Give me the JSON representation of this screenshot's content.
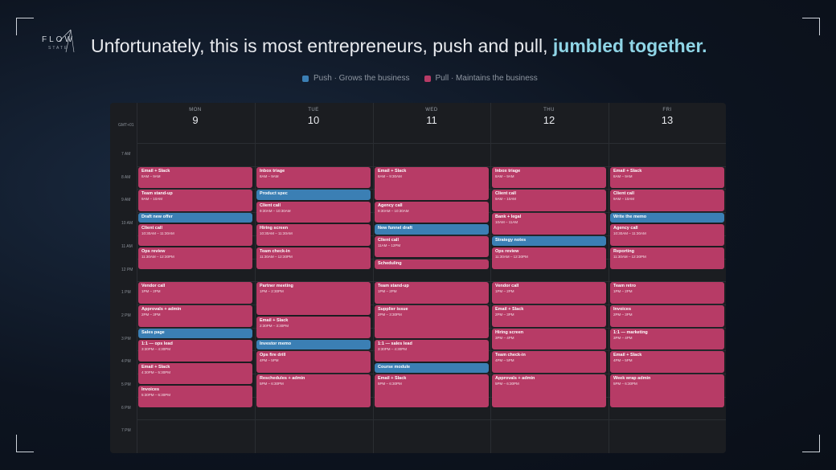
{
  "brand": {
    "name": "FLOW",
    "sub": "STATE"
  },
  "headline": {
    "main": "Unfortunately, this is most entrepreneurs, push and pull,",
    "highlight": "jumbled together."
  },
  "legend": {
    "push": {
      "label": "Push · Grows the business",
      "color": "#3b7fb4"
    },
    "pull": {
      "label": "Pull · Maintains the business",
      "color": "#b73b66"
    }
  },
  "calendar": {
    "timezone": "GMT+01",
    "hours": [
      "7 AM",
      "8 AM",
      "9 AM",
      "10 AM",
      "11 AM",
      "12 PM",
      "1 PM",
      "2 PM",
      "3 PM",
      "4 PM",
      "5 PM",
      "6 PM",
      "7 PM"
    ],
    "days": [
      {
        "name": "MON",
        "num": "9",
        "events": [
          {
            "title": "Email + Slack",
            "time": "8AM – 9AM",
            "type": "pull",
            "start": 8,
            "end": 9
          },
          {
            "title": "Team stand-up",
            "time": "9AM – 10AM",
            "type": "pull",
            "start": 9,
            "end": 10
          },
          {
            "title": "Draft new offer",
            "time": "",
            "type": "push",
            "start": 10,
            "end": 10.5
          },
          {
            "title": "Client call",
            "time": "10:30AM – 11:30AM",
            "type": "pull",
            "start": 10.5,
            "end": 11.5
          },
          {
            "title": "Ops review",
            "time": "11:30AM – 12:30PM",
            "type": "pull",
            "start": 11.5,
            "end": 12.5
          },
          {
            "title": "Vendor call",
            "time": "1PM – 2PM",
            "type": "pull",
            "start": 13,
            "end": 14
          },
          {
            "title": "Approvals + admin",
            "time": "2PM – 3PM",
            "type": "pull",
            "start": 14,
            "end": 15
          },
          {
            "title": "Sales page",
            "time": "",
            "type": "push",
            "start": 15,
            "end": 15.5
          },
          {
            "title": "1:1 — ops lead",
            "time": "3:30PM – 4:30PM",
            "type": "pull",
            "start": 15.5,
            "end": 16.5
          },
          {
            "title": "Email + Slack",
            "time": "4:30PM – 5:30PM",
            "type": "pull",
            "start": 16.5,
            "end": 17.5
          },
          {
            "title": "Invoices",
            "time": "5:30PM – 6:30PM",
            "type": "pull",
            "start": 17.5,
            "end": 18.5
          }
        ]
      },
      {
        "name": "TUE",
        "num": "10",
        "events": [
          {
            "title": "Inbox triage",
            "time": "8AM – 9AM",
            "type": "pull",
            "start": 8,
            "end": 9
          },
          {
            "title": "Product spec",
            "time": "",
            "type": "push",
            "start": 9,
            "end": 9.5
          },
          {
            "title": "Client call",
            "time": "9:30AM – 10:30AM",
            "type": "pull",
            "start": 9.5,
            "end": 10.5
          },
          {
            "title": "Hiring screen",
            "time": "10:30AM – 11:30AM",
            "type": "pull",
            "start": 10.5,
            "end": 11.5
          },
          {
            "title": "Team check-in",
            "time": "11:30AM – 12:30PM",
            "type": "pull",
            "start": 11.5,
            "end": 12.5
          },
          {
            "title": "Partner meeting",
            "time": "1PM – 2:30PM",
            "type": "pull",
            "start": 13,
            "end": 14.5
          },
          {
            "title": "Email + Slack",
            "time": "2:30PM – 3:30PM",
            "type": "pull",
            "start": 14.5,
            "end": 15.5
          },
          {
            "title": "Investor memo",
            "time": "",
            "type": "push",
            "start": 15.5,
            "end": 16
          },
          {
            "title": "Ops fire drill",
            "time": "4PM – 5PM",
            "type": "pull",
            "start": 16,
            "end": 17
          },
          {
            "title": "Reschedules + admin",
            "time": "5PM – 6:30PM",
            "type": "pull",
            "start": 17,
            "end": 18.5
          }
        ]
      },
      {
        "name": "WED",
        "num": "11",
        "events": [
          {
            "title": "Email + Slack",
            "time": "8AM – 9:30AM",
            "type": "pull",
            "start": 8,
            "end": 9.5
          },
          {
            "title": "Agency call",
            "time": "9:30AM – 10:30AM",
            "type": "pull",
            "start": 9.5,
            "end": 10.5
          },
          {
            "title": "New funnel draft",
            "time": "",
            "type": "push",
            "start": 10.5,
            "end": 11
          },
          {
            "title": "Client call",
            "time": "11AM – 12PM",
            "type": "pull",
            "start": 11,
            "end": 12
          },
          {
            "title": "Scheduling",
            "time": "",
            "type": "pull",
            "start": 12,
            "end": 12.5
          },
          {
            "title": "Team stand-up",
            "time": "1PM – 2PM",
            "type": "pull",
            "start": 13,
            "end": 14
          },
          {
            "title": "Supplier issue",
            "time": "2PM – 3:30PM",
            "type": "pull",
            "start": 14,
            "end": 15.5
          },
          {
            "title": "1:1 — sales lead",
            "time": "3:30PM – 4:30PM",
            "type": "pull",
            "start": 15.5,
            "end": 16.5
          },
          {
            "title": "Course module",
            "time": "",
            "type": "push",
            "start": 16.5,
            "end": 17
          },
          {
            "title": "Email + Slack",
            "time": "5PM – 6:30PM",
            "type": "pull",
            "start": 17,
            "end": 18.5
          }
        ]
      },
      {
        "name": "THU",
        "num": "12",
        "events": [
          {
            "title": "Inbox triage",
            "time": "8AM – 9AM",
            "type": "pull",
            "start": 8,
            "end": 9
          },
          {
            "title": "Client call",
            "time": "9AM – 10AM",
            "type": "pull",
            "start": 9,
            "end": 10
          },
          {
            "title": "Bank + legal",
            "time": "10AM – 11AM",
            "type": "pull",
            "start": 10,
            "end": 11
          },
          {
            "title": "Strategy notes",
            "time": "",
            "type": "push",
            "start": 11,
            "end": 11.5
          },
          {
            "title": "Ops review",
            "time": "11:30AM – 12:30PM",
            "type": "pull",
            "start": 11.5,
            "end": 12.5
          },
          {
            "title": "Vendor call",
            "time": "1PM – 2PM",
            "type": "pull",
            "start": 13,
            "end": 14
          },
          {
            "title": "Email + Slack",
            "time": "2PM – 3PM",
            "type": "pull",
            "start": 14,
            "end": 15
          },
          {
            "title": "Hiring screen",
            "time": "3PM – 4PM",
            "type": "pull",
            "start": 15,
            "end": 16
          },
          {
            "title": "Team check-in",
            "time": "4PM – 5PM",
            "type": "pull",
            "start": 16,
            "end": 17
          },
          {
            "title": "Approvals + admin",
            "time": "5PM – 6:30PM",
            "type": "pull",
            "start": 17,
            "end": 18.5
          }
        ]
      },
      {
        "name": "FRI",
        "num": "13",
        "events": [
          {
            "title": "Email + Slack",
            "time": "8AM – 9AM",
            "type": "pull",
            "start": 8,
            "end": 9
          },
          {
            "title": "Client call",
            "time": "9AM – 10AM",
            "type": "pull",
            "start": 9,
            "end": 10
          },
          {
            "title": "Write the memo",
            "time": "",
            "type": "push",
            "start": 10,
            "end": 10.5
          },
          {
            "title": "Agency call",
            "time": "10:30AM – 11:30AM",
            "type": "pull",
            "start": 10.5,
            "end": 11.5
          },
          {
            "title": "Reporting",
            "time": "11:30AM – 12:30PM",
            "type": "pull",
            "start": 11.5,
            "end": 12.5
          },
          {
            "title": "Team retro",
            "time": "1PM – 2PM",
            "type": "pull",
            "start": 13,
            "end": 14
          },
          {
            "title": "Invoices",
            "time": "2PM – 3PM",
            "type": "pull",
            "start": 14,
            "end": 15
          },
          {
            "title": "1:1 — marketing",
            "time": "3PM – 4PM",
            "type": "pull",
            "start": 15,
            "end": 16
          },
          {
            "title": "Email + Slack",
            "time": "4PM – 5PM",
            "type": "pull",
            "start": 16,
            "end": 17
          },
          {
            "title": "Week wrap admin",
            "time": "5PM – 6:30PM",
            "type": "pull",
            "start": 17,
            "end": 18.5
          }
        ]
      }
    ]
  }
}
